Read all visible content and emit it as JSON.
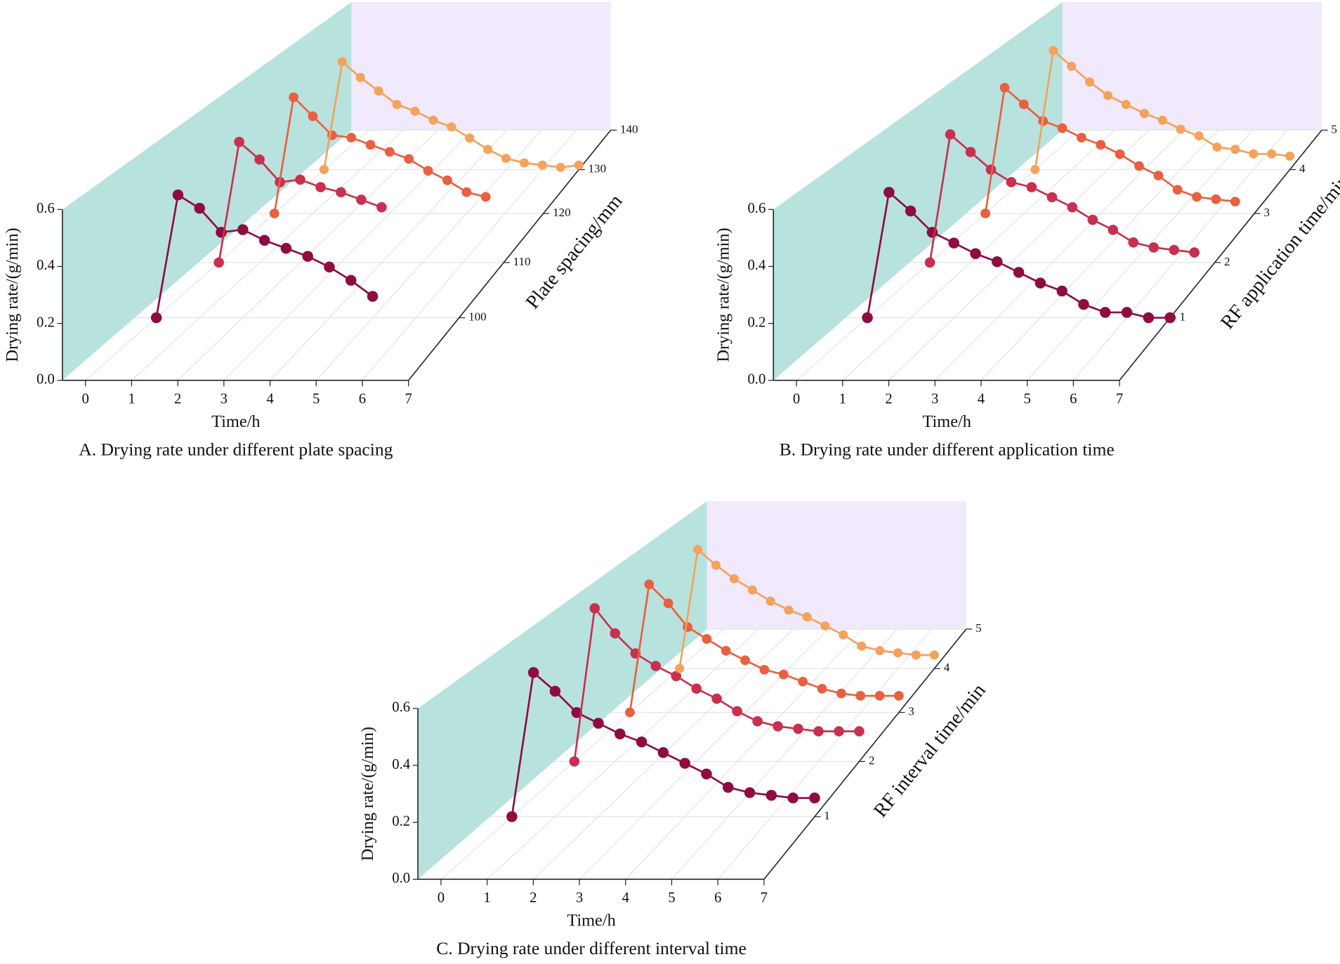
{
  "chart_data": [
    {
      "type": "line3d",
      "caption": "A. Drying rate under different plate spacing",
      "xlabel": "Time/h",
      "ylabel": "Drying rate/(g/min)",
      "zlabel": "Plate spacing/mm",
      "xlim": [
        -0.5,
        7
      ],
      "xticks": [
        0,
        1,
        2,
        3,
        4,
        5,
        6,
        7
      ],
      "ylim": [
        0,
        0.6
      ],
      "yticks": [
        {
          "value": 0,
          "label": "0.0"
        },
        0.2,
        0.4,
        0.6
      ],
      "zlim": [
        90,
        140
      ],
      "zticks": [
        100,
        110,
        120,
        130,
        140
      ],
      "wall_color": "#b8e2de",
      "back_wall_color": "#f1e9fc",
      "grid": true,
      "series": [
        {
          "z": 100,
          "color": "#8e0c42",
          "x": [
            0,
            0.5,
            1,
            1.5,
            2,
            2.5,
            3,
            3.5,
            4,
            4.5,
            5
          ],
          "values": [
            0,
            0.46,
            0.41,
            0.32,
            0.33,
            0.29,
            0.26,
            0.23,
            0.19,
            0.14,
            0.08
          ]
        },
        {
          "z": 110,
          "color": "#c8304f",
          "x": [
            0,
            0.5,
            1,
            1.5,
            2,
            2.5,
            3,
            3.5,
            4
          ],
          "values": [
            0,
            0.48,
            0.41,
            0.32,
            0.33,
            0.3,
            0.28,
            0.25,
            0.22
          ]
        },
        {
          "z": 120,
          "color": "#e8603f",
          "x": [
            0,
            0.5,
            1,
            1.5,
            2,
            2.5,
            3,
            3.5,
            4,
            4.5,
            5,
            5.5
          ],
          "values": [
            0,
            0.49,
            0.41,
            0.33,
            0.32,
            0.29,
            0.26,
            0.23,
            0.18,
            0.14,
            0.09,
            0.07
          ]
        },
        {
          "z": 130,
          "color": "#f4a25c",
          "x": [
            0,
            0.5,
            1,
            1.5,
            2,
            2.5,
            3,
            3.5,
            4,
            4.5,
            5,
            5.5,
            6,
            6.5,
            7
          ],
          "values": [
            0,
            0.48,
            0.41,
            0.35,
            0.29,
            0.26,
            0.22,
            0.19,
            0.14,
            0.09,
            0.05,
            0.03,
            0.02,
            0.01,
            0.02
          ]
        }
      ]
    },
    {
      "type": "line3d",
      "caption": "B. Drying rate under different application time",
      "xlabel": "Time/h",
      "ylabel": "Drying rate/(g/min)",
      "zlabel": "RF application time/min",
      "xlim": [
        -0.5,
        7
      ],
      "xticks": [
        0,
        1,
        2,
        3,
        4,
        5,
        6,
        7
      ],
      "ylim": [
        0,
        0.6
      ],
      "yticks": [
        {
          "value": 0,
          "label": "0.0"
        },
        0.2,
        0.4,
        0.6
      ],
      "zlim": [
        0,
        5
      ],
      "zticks": [
        1,
        2,
        3,
        4,
        5
      ],
      "wall_color": "#b8e2de",
      "back_wall_color": "#f1e9fc",
      "grid": true,
      "series": [
        {
          "z": 1,
          "color": "#8e0c42",
          "x": [
            0,
            0.5,
            1,
            1.5,
            2,
            2.5,
            3,
            3.5,
            4,
            4.5,
            5,
            5.5,
            6,
            6.5,
            7
          ],
          "values": [
            0,
            0.47,
            0.4,
            0.32,
            0.28,
            0.24,
            0.21,
            0.17,
            0.13,
            0.1,
            0.05,
            0.02,
            0.02,
            0,
            0
          ]
        },
        {
          "z": 2,
          "color": "#c8304f",
          "x": [
            0,
            0.5,
            1,
            1.5,
            2,
            2.5,
            3,
            3.5,
            4,
            4.5,
            5,
            5.5,
            6,
            6.5
          ],
          "values": [
            0,
            0.51,
            0.44,
            0.37,
            0.32,
            0.3,
            0.26,
            0.22,
            0.17,
            0.13,
            0.08,
            0.06,
            0.05,
            0.04
          ]
        },
        {
          "z": 3,
          "color": "#e8603f",
          "x": [
            0,
            0.5,
            1,
            1.5,
            2,
            2.5,
            3,
            3.5,
            4,
            4.5,
            5,
            5.5,
            6,
            6.5
          ],
          "values": [
            0,
            0.53,
            0.46,
            0.39,
            0.36,
            0.32,
            0.29,
            0.25,
            0.2,
            0.16,
            0.1,
            0.07,
            0.06,
            0.05
          ]
        },
        {
          "z": 4,
          "color": "#f4a25c",
          "x": [
            0,
            0.5,
            1,
            1.5,
            2,
            2.5,
            3,
            3.5,
            4,
            4.5,
            5,
            5.5,
            6,
            6.5,
            7
          ],
          "values": [
            0,
            0.53,
            0.46,
            0.39,
            0.33,
            0.29,
            0.25,
            0.22,
            0.18,
            0.15,
            0.1,
            0.09,
            0.07,
            0.07,
            0.06
          ]
        }
      ]
    },
    {
      "type": "line3d",
      "caption": "C. Drying rate under different interval time",
      "xlabel": "Time/h",
      "ylabel": "Drying rate/(g/min)",
      "zlabel": "RF interval time/min",
      "xlim": [
        -0.5,
        7
      ],
      "xticks": [
        0,
        1,
        2,
        3,
        4,
        5,
        6,
        7
      ],
      "ylim": [
        0,
        0.6
      ],
      "yticks": [
        {
          "value": 0,
          "label": "0.0"
        },
        0.2,
        0.4,
        0.6
      ],
      "zlim": [
        0,
        5
      ],
      "zticks": [
        1,
        2,
        3,
        4,
        5
      ],
      "wall_color": "#b8e2de",
      "back_wall_color": "#f1e9fc",
      "grid": true,
      "series": [
        {
          "z": 1,
          "color": "#8e0c42",
          "x": [
            0,
            0.5,
            1,
            1.5,
            2,
            2.5,
            3,
            3.5,
            4,
            4.5,
            5,
            5.5,
            6,
            6.5,
            7
          ],
          "values": [
            0,
            0.54,
            0.47,
            0.39,
            0.35,
            0.31,
            0.28,
            0.24,
            0.2,
            0.16,
            0.11,
            0.09,
            0.08,
            0.07,
            0.07
          ]
        },
        {
          "z": 2,
          "color": "#c8304f",
          "x": [
            0,
            0.5,
            1,
            1.5,
            2,
            2.5,
            3,
            3.5,
            4,
            4.5,
            5,
            5.5,
            6,
            6.5,
            7
          ],
          "values": [
            0,
            0.61,
            0.51,
            0.43,
            0.38,
            0.34,
            0.29,
            0.25,
            0.2,
            0.16,
            0.14,
            0.13,
            0.12,
            0.12,
            0.12
          ]
        },
        {
          "z": 3,
          "color": "#e8603f",
          "x": [
            0,
            0.5,
            1,
            1.5,
            2,
            2.5,
            3,
            3.5,
            4,
            4.5,
            5,
            5.5,
            6,
            6.5,
            7
          ],
          "values": [
            0,
            0.54,
            0.46,
            0.36,
            0.31,
            0.26,
            0.22,
            0.18,
            0.16,
            0.13,
            0.1,
            0.08,
            0.07,
            0.07,
            0.07
          ]
        },
        {
          "z": 4,
          "color": "#f4a25c",
          "x": [
            0,
            0.5,
            1,
            1.5,
            2,
            2.5,
            3,
            3.5,
            4,
            4.5,
            5,
            5.5,
            6,
            6.5,
            7
          ],
          "values": [
            0,
            0.53,
            0.46,
            0.4,
            0.35,
            0.3,
            0.26,
            0.23,
            0.19,
            0.15,
            0.1,
            0.08,
            0.07,
            0.06,
            0.06
          ]
        }
      ]
    }
  ]
}
